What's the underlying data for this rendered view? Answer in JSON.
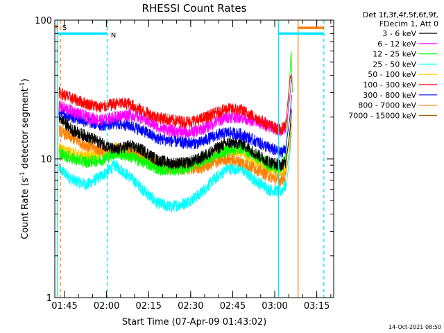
{
  "chart_data": {
    "type": "line",
    "title": "RHESSI Count Rates",
    "xlabel": "Start Time (07-Apr-09 01:43:02)",
    "ylabel_main": "Count Rate (s",
    "ylabel_sup1": "-1",
    "ylabel_mid": " detector segment",
    "ylabel_sup2": "-1",
    "ylabel_end": ")",
    "y_scale": "log",
    "ylim": [
      1,
      100
    ],
    "xlim_minutes_after_start": [
      -1.5,
      98
    ],
    "y_ticks": [
      {
        "value": 1,
        "label": "1"
      },
      {
        "value": 10,
        "label": "10"
      },
      {
        "value": 100,
        "label": "100"
      }
    ],
    "x_ticks": [
      {
        "minutes": 1.97,
        "label": "01:45"
      },
      {
        "minutes": 16.97,
        "label": "02:00"
      },
      {
        "minutes": 31.97,
        "label": "02:15"
      },
      {
        "minutes": 46.97,
        "label": "02:30"
      },
      {
        "minutes": 61.97,
        "label": "02:45"
      },
      {
        "minutes": 76.97,
        "label": "03:00"
      },
      {
        "minutes": 91.97,
        "label": "03:15"
      }
    ],
    "legend_header": [
      "Det 1f,3f,4f,5f,6f,9f,",
      "FDecim 1, Att 0"
    ],
    "legend_position": "outside-right",
    "series": [
      {
        "name": "3 - 6 keV",
        "color": "#000000",
        "points": [
          [
            0,
            20
          ],
          [
            5,
            16
          ],
          [
            10,
            14.5
          ],
          [
            15,
            13
          ],
          [
            20,
            11.5
          ],
          [
            25,
            12.5
          ],
          [
            30,
            11.5
          ],
          [
            35,
            9.8
          ],
          [
            40,
            9.3
          ],
          [
            45,
            9.3
          ],
          [
            50,
            10
          ],
          [
            55,
            11.5
          ],
          [
            60,
            13
          ],
          [
            65,
            13
          ],
          [
            70,
            11
          ],
          [
            75,
            9.5
          ],
          [
            79,
            9
          ],
          [
            81,
            9.5
          ]
        ]
      },
      {
        "name": "6 - 12 keV",
        "color": "#ff00ff",
        "points": [
          [
            0,
            24
          ],
          [
            5,
            22
          ],
          [
            10,
            20
          ],
          [
            15,
            19
          ],
          [
            20,
            20
          ],
          [
            25,
            21
          ],
          [
            30,
            19.5
          ],
          [
            35,
            17
          ],
          [
            40,
            16
          ],
          [
            45,
            15.5
          ],
          [
            50,
            16
          ],
          [
            55,
            18
          ],
          [
            60,
            20
          ],
          [
            65,
            20
          ],
          [
            70,
            18.5
          ],
          [
            75,
            17
          ],
          [
            79,
            16
          ],
          [
            81,
            17
          ]
        ]
      },
      {
        "name": "12 - 25 keV",
        "color": "#00ff00",
        "points": [
          [
            0,
            11
          ],
          [
            5,
            10
          ],
          [
            10,
            9.5
          ],
          [
            15,
            9.8
          ],
          [
            20,
            11
          ],
          [
            25,
            10.5
          ],
          [
            30,
            9.5
          ],
          [
            35,
            8.5
          ],
          [
            40,
            8.3
          ],
          [
            45,
            8.5
          ],
          [
            50,
            9.5
          ],
          [
            55,
            10.5
          ],
          [
            60,
            11.5
          ],
          [
            65,
            12
          ],
          [
            70,
            10.5
          ],
          [
            75,
            9
          ],
          [
            79,
            8.5
          ],
          [
            81,
            10
          ],
          [
            82.8,
            60
          ],
          [
            83.3,
            30
          ]
        ]
      },
      {
        "name": "25 - 50 keV",
        "color": "#00ffff",
        "points": [
          [
            0,
            8.5
          ],
          [
            5,
            7
          ],
          [
            10,
            6.5
          ],
          [
            15,
            7.5
          ],
          [
            20,
            9
          ],
          [
            25,
            7.5
          ],
          [
            30,
            6
          ],
          [
            35,
            4.8
          ],
          [
            40,
            4.5
          ],
          [
            45,
            4.8
          ],
          [
            50,
            5.5
          ],
          [
            55,
            7
          ],
          [
            60,
            8.5
          ],
          [
            65,
            8.5
          ],
          [
            70,
            7
          ],
          [
            75,
            6
          ],
          [
            79,
            5.8
          ],
          [
            81,
            6.5
          ]
        ]
      },
      {
        "name": "50 - 100 keV",
        "color": "#ffcc00",
        "points": [
          [
            0,
            12
          ],
          [
            5,
            11
          ],
          [
            10,
            10.5
          ],
          [
            15,
            11
          ],
          [
            20,
            12
          ],
          [
            25,
            11.5
          ],
          [
            30,
            10.5
          ],
          [
            35,
            9.5
          ],
          [
            40,
            9
          ],
          [
            45,
            9
          ],
          [
            50,
            9.5
          ],
          [
            55,
            10.5
          ],
          [
            60,
            11.5
          ],
          [
            65,
            11
          ],
          [
            70,
            9.5
          ],
          [
            75,
            8.5
          ],
          [
            79,
            8
          ],
          [
            81,
            8.5
          ]
        ]
      },
      {
        "name": "100 - 300 keV",
        "color": "#ff0000",
        "points": [
          [
            0,
            30
          ],
          [
            5,
            27
          ],
          [
            10,
            25
          ],
          [
            15,
            23.5
          ],
          [
            20,
            25
          ],
          [
            25,
            25
          ],
          [
            30,
            22
          ],
          [
            35,
            20
          ],
          [
            40,
            19
          ],
          [
            45,
            18.5
          ],
          [
            50,
            19
          ],
          [
            55,
            21
          ],
          [
            60,
            23
          ],
          [
            65,
            22.5
          ],
          [
            70,
            20
          ],
          [
            75,
            17.5
          ],
          [
            79,
            16
          ],
          [
            81,
            18
          ],
          [
            82.5,
            40
          ],
          [
            83.2,
            35
          ]
        ]
      },
      {
        "name": "300 - 800 keV",
        "color": "#0000ff",
        "points": [
          [
            0,
            22
          ],
          [
            5,
            20
          ],
          [
            10,
            18.5
          ],
          [
            15,
            17.5
          ],
          [
            20,
            18
          ],
          [
            25,
            17.5
          ],
          [
            30,
            16
          ],
          [
            35,
            14
          ],
          [
            40,
            13.5
          ],
          [
            45,
            13
          ],
          [
            50,
            13
          ],
          [
            55,
            14.5
          ],
          [
            60,
            15.5
          ],
          [
            65,
            15
          ],
          [
            70,
            13.5
          ],
          [
            75,
            12
          ],
          [
            79,
            11
          ],
          [
            81,
            12
          ]
        ]
      },
      {
        "name": "800 - 7000 keV",
        "color": "#ff7f00",
        "points": [
          [
            0,
            16
          ],
          [
            5,
            14
          ],
          [
            10,
            12.5
          ],
          [
            15,
            11.5
          ],
          [
            20,
            11.5
          ],
          [
            25,
            11
          ],
          [
            30,
            10
          ],
          [
            35,
            9
          ],
          [
            40,
            8.5
          ],
          [
            45,
            8.5
          ],
          [
            50,
            8.5
          ],
          [
            55,
            9.3
          ],
          [
            60,
            10
          ],
          [
            65,
            9.5
          ],
          [
            70,
            8.5
          ],
          [
            75,
            7.5
          ],
          [
            79,
            7
          ],
          [
            81,
            7.5
          ]
        ]
      },
      {
        "name": "7000 - 15000 keV",
        "color": "#996600",
        "points": []
      }
    ],
    "annotations": {
      "segment_labels": [
        {
          "text": "S",
          "color": "#ff7f00"
        },
        {
          "text": "N",
          "color": "#00e5ff"
        }
      ],
      "vertical_lines": [
        {
          "minutes": -0.5,
          "color": "#00e5ff",
          "style": "solid"
        },
        {
          "minutes": 0.5,
          "color": "#ff7f00",
          "style": "dashed"
        },
        {
          "minutes": 17.2,
          "color": "#00e5ff",
          "style": "dashed"
        },
        {
          "minutes": 78.3,
          "color": "#00e5ff",
          "style": "solid"
        },
        {
          "minutes": 85.3,
          "color": "#ff7f00",
          "style": "solid"
        },
        {
          "minutes": 94.5,
          "color": "#00e5ff",
          "style": "dashed"
        }
      ],
      "horizontal_bars": [
        {
          "from": -0.5,
          "to": 17.2,
          "value": 80,
          "color": "#00e5ff"
        },
        {
          "from": 78.3,
          "to": 94.5,
          "value": 80,
          "color": "#00e5ff"
        },
        {
          "from": 85.3,
          "to": 94.5,
          "value": 88,
          "color": "#ff7f00"
        }
      ]
    }
  },
  "footer_timestamp": "14-Oct-2021 08:50"
}
